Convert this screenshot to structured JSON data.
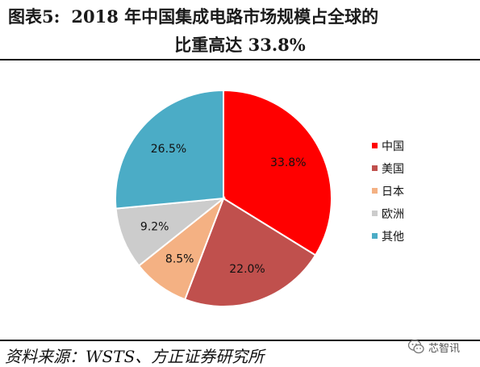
{
  "header": {
    "figure_number": "图表5:",
    "title_line1": "2018 年中国集成电路市场规模占全球的",
    "title_line2": "比重高达 33.8%"
  },
  "chart_data": {
    "type": "pie",
    "start_angle_deg": 0,
    "direction": "clockwise",
    "legend_position": "right",
    "slices": [
      {
        "name": "中国",
        "value": 33.8,
        "label": "33.8%",
        "color": "#ff0000"
      },
      {
        "name": "美国",
        "value": 22.0,
        "label": "22.0%",
        "color": "#c0504d"
      },
      {
        "name": "日本",
        "value": 8.5,
        "label": "8.5%",
        "color": "#f4b183"
      },
      {
        "name": "欧洲",
        "value": 9.2,
        "label": "9.2%",
        "color": "#cccccc"
      },
      {
        "name": "其他",
        "value": 26.5,
        "label": "26.5%",
        "color": "#4bacc6"
      }
    ]
  },
  "footer": {
    "source": "资料来源：WSTS、方正证券研究所",
    "watermark": "芯智讯"
  }
}
